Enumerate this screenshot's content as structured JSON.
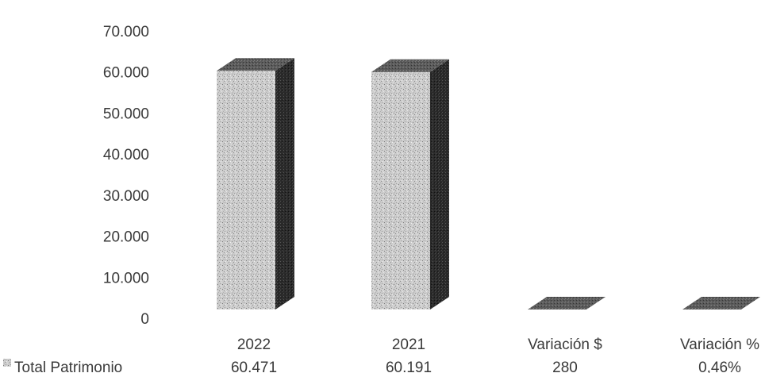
{
  "chart_data": {
    "type": "bar",
    "title": "",
    "xlabel": "",
    "ylabel": "",
    "ylim": [
      0,
      70000
    ],
    "yticks": [
      "0",
      "10.000",
      "20.000",
      "30.000",
      "40.000",
      "50.000",
      "60.000",
      "70.000"
    ],
    "categories": [
      "2022",
      "2021",
      "Variación $",
      "Variación %"
    ],
    "series": [
      {
        "name": "Total Patrimonio",
        "values": [
          60471,
          60191,
          280,
          0.46
        ],
        "labels": [
          "60.471",
          "60.191",
          "280",
          "0,46%"
        ]
      }
    ],
    "grid": false,
    "legend": "bottom-left, as row header of data table"
  },
  "colors": {
    "bar_front": "#c9c9c9",
    "bar_side": "#2e2e2e",
    "bar_top": "#5e5e5e",
    "text": "#3a3a3a"
  }
}
